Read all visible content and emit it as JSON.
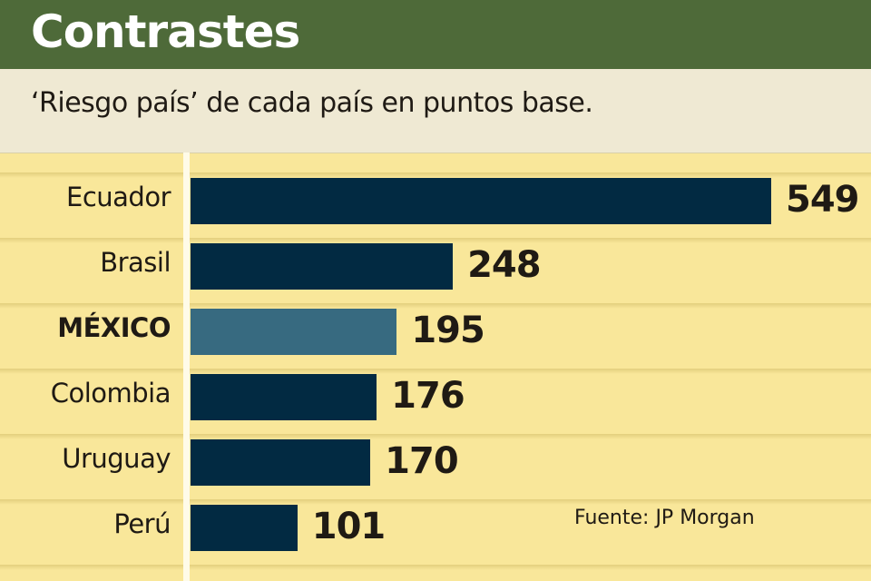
{
  "header": {
    "title": "Contrastes",
    "subtitle": "‘Riesgo país’ de cada país en puntos base."
  },
  "source": "Fuente: JP Morgan",
  "colors": {
    "bar": "#022a42",
    "highlight": "#376a80",
    "header": "#4e6a39",
    "background": "#f9e79a"
  },
  "chart_data": {
    "type": "bar",
    "orientation": "horizontal",
    "title": "Contrastes",
    "subtitle": "‘Riesgo país’ de cada país en puntos base.",
    "categories": [
      "Ecuador",
      "Brasil",
      "MÉXICO",
      "Colombia",
      "Uruguay",
      "Perú"
    ],
    "values": [
      549,
      248,
      195,
      176,
      170,
      101
    ],
    "highlighted": "MÉXICO",
    "xlim": [
      0,
      549
    ],
    "grid": false,
    "source": "Fuente: JP Morgan"
  }
}
